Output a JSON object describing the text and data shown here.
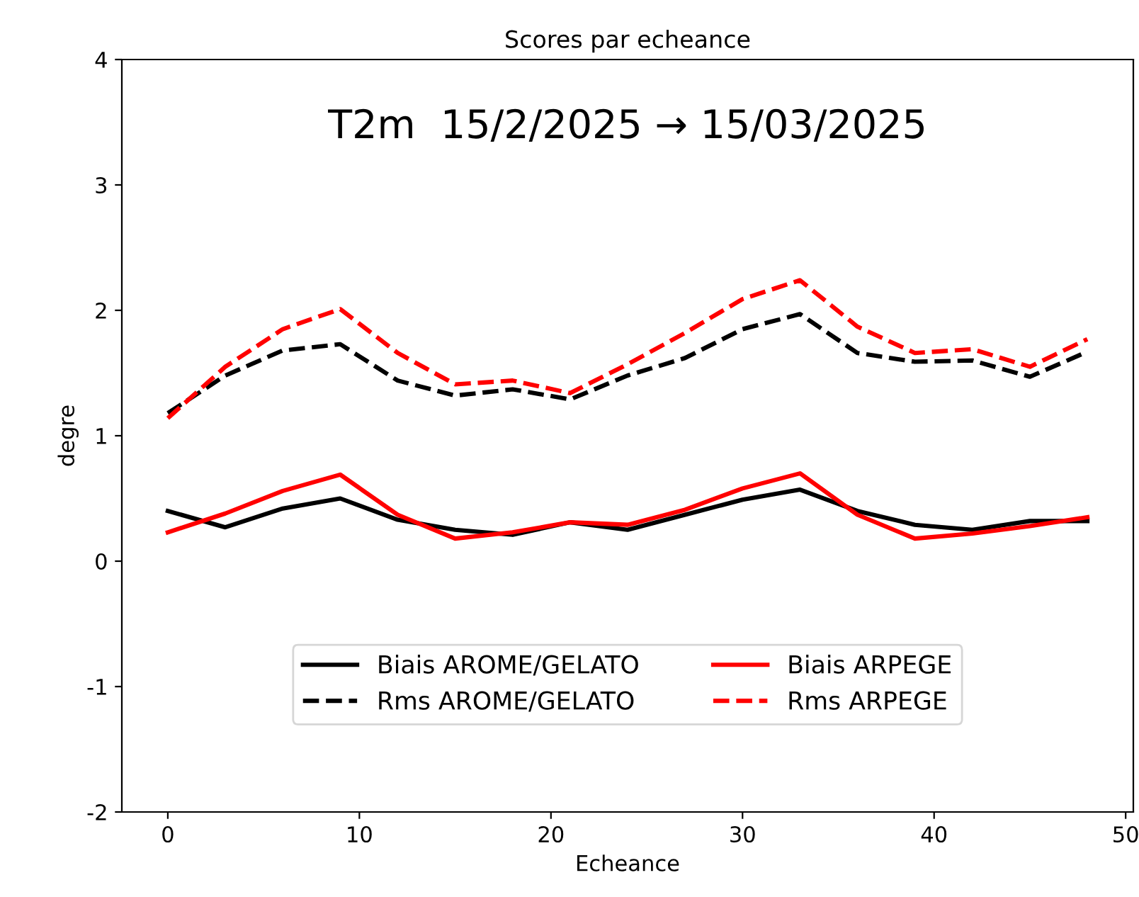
{
  "chart_data": {
    "type": "line",
    "title": "Scores par echeance",
    "xlabel": "Echeance",
    "ylabel": "degre",
    "annotations": [
      "T2m  15/2/2025 → 15/03/2025"
    ],
    "x": [
      0,
      3,
      6,
      9,
      12,
      15,
      18,
      21,
      24,
      27,
      30,
      33,
      36,
      39,
      42,
      45,
      48
    ],
    "series": [
      {
        "name": "Biais AROME/GELATO",
        "color": "#000000",
        "line_style": "solid",
        "values": [
          0.4,
          0.27,
          0.42,
          0.5,
          0.33,
          0.25,
          0.21,
          0.31,
          0.25,
          0.37,
          0.49,
          0.57,
          0.4,
          0.29,
          0.25,
          0.32,
          0.32
        ]
      },
      {
        "name": "Rms AROME/GELATO",
        "color": "#000000",
        "line_style": "dashed",
        "values": [
          1.18,
          1.48,
          1.68,
          1.73,
          1.44,
          1.32,
          1.37,
          1.29,
          1.48,
          1.62,
          1.85,
          1.97,
          1.66,
          1.59,
          1.6,
          1.47,
          1.67
        ]
      },
      {
        "name": "Biais ARPEGE",
        "color": "#ff0000",
        "line_style": "solid",
        "values": [
          0.23,
          0.38,
          0.56,
          0.69,
          0.37,
          0.18,
          0.23,
          0.31,
          0.29,
          0.41,
          0.58,
          0.7,
          0.37,
          0.18,
          0.22,
          0.28,
          0.35
        ]
      },
      {
        "name": "Rms ARPEGE",
        "color": "#ff0000",
        "line_style": "dashed",
        "values": [
          1.14,
          1.55,
          1.85,
          2.01,
          1.66,
          1.41,
          1.44,
          1.34,
          1.57,
          1.82,
          2.09,
          2.24,
          1.87,
          1.66,
          1.69,
          1.55,
          1.77
        ]
      }
    ],
    "xlim": [
      -2.4,
      50.4
    ],
    "xticks": [
      0,
      10,
      20,
      30,
      40,
      50
    ],
    "ylim": [
      -2,
      4
    ],
    "yticks": [
      -2,
      -1,
      0,
      1,
      2,
      3,
      4
    ],
    "grid": false,
    "legend": "bottom",
    "marker": "none"
  }
}
